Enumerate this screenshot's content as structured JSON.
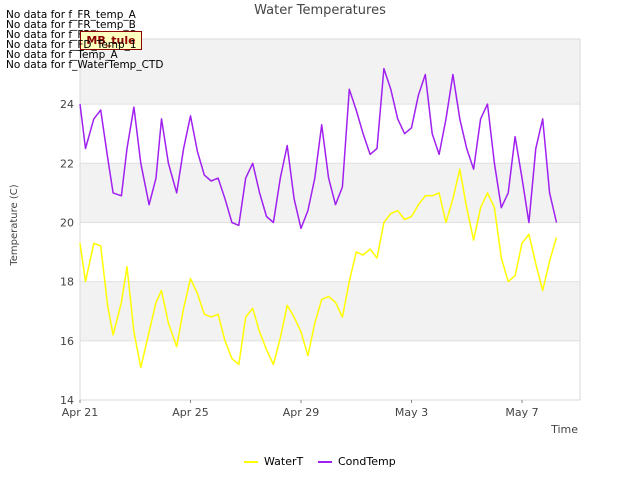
{
  "chart_data": {
    "type": "line",
    "title": "Water Temperatures",
    "xlabel": "Time",
    "ylabel": "Temperature (C)",
    "ylim": [
      14,
      26.2
    ],
    "yticks": [
      14,
      16,
      18,
      20,
      22,
      24
    ],
    "x_start": "2024-04-21",
    "xticks": [
      "Apr 21",
      "Apr 25",
      "Apr 29",
      "May 3",
      "May 7"
    ],
    "xtick_days": [
      0,
      4,
      8,
      12,
      16
    ],
    "xlim_days": [
      0,
      18.1
    ],
    "grid": "horizontal alternating bands",
    "legend_position": "bottom-center",
    "no_data_messages": [
      "No data for f_FR_temp_A",
      "No data for f_FR_temp_B",
      "No data for f_FR_temp_C",
      "No data for f_FD_Temp_1",
      "No data for f_Temp_A",
      "No data for f_WaterTemp_CTD"
    ],
    "badge_text": "MB_tule",
    "series": [
      {
        "name": "WaterT",
        "color": "#ffff00",
        "x_days": [
          0,
          0.2,
          0.5,
          0.75,
          1.0,
          1.2,
          1.5,
          1.7,
          1.95,
          2.2,
          2.5,
          2.75,
          2.95,
          3.2,
          3.5,
          3.75,
          4.0,
          4.25,
          4.5,
          4.75,
          5.0,
          5.25,
          5.5,
          5.75,
          6.0,
          6.25,
          6.5,
          6.75,
          7.0,
          7.25,
          7.5,
          7.75,
          8.0,
          8.25,
          8.5,
          8.75,
          9.0,
          9.25,
          9.5,
          9.75,
          10.0,
          10.25,
          10.5,
          10.75,
          11.0,
          11.25,
          11.5,
          11.75,
          12.0,
          12.25,
          12.5,
          12.75,
          13.0,
          13.25,
          13.5,
          13.75,
          14.0,
          14.25,
          14.5,
          14.75,
          15.0,
          15.25,
          15.5,
          15.75,
          16.0,
          16.25,
          16.5,
          16.75,
          17.0,
          17.25
        ],
        "values": [
          19.3,
          18.0,
          19.3,
          19.2,
          17.2,
          16.2,
          17.3,
          18.5,
          16.3,
          15.1,
          16.3,
          17.3,
          17.7,
          16.6,
          15.8,
          17.1,
          18.1,
          17.6,
          16.9,
          16.8,
          16.9,
          16.0,
          15.4,
          15.2,
          16.8,
          17.1,
          16.3,
          15.7,
          15.2,
          16.1,
          17.2,
          16.8,
          16.3,
          15.5,
          16.6,
          17.4,
          17.5,
          17.3,
          16.8,
          18.0,
          19.0,
          18.9,
          19.1,
          18.8,
          20.0,
          20.3,
          20.4,
          20.1,
          20.2,
          20.6,
          20.9,
          20.9,
          21.0,
          20.0,
          20.8,
          21.8,
          20.5,
          19.4,
          20.5,
          21.0,
          20.5,
          18.8,
          18.0,
          18.2,
          19.3,
          19.6,
          18.6,
          17.7,
          18.7,
          19.5
        ]
      },
      {
        "name": "CondTemp",
        "color": "#a020f0",
        "x_days": [
          0,
          0.2,
          0.5,
          0.75,
          1.0,
          1.2,
          1.5,
          1.7,
          1.95,
          2.2,
          2.5,
          2.75,
          2.95,
          3.2,
          3.5,
          3.75,
          4.0,
          4.25,
          4.5,
          4.75,
          5.0,
          5.25,
          5.5,
          5.75,
          6.0,
          6.25,
          6.5,
          6.75,
          7.0,
          7.25,
          7.5,
          7.75,
          8.0,
          8.25,
          8.5,
          8.75,
          9.0,
          9.25,
          9.5,
          9.75,
          10.0,
          10.25,
          10.5,
          10.75,
          11.0,
          11.25,
          11.5,
          11.75,
          12.0,
          12.25,
          12.5,
          12.75,
          13.0,
          13.25,
          13.5,
          13.75,
          14.0,
          14.25,
          14.5,
          14.75,
          15.0,
          15.25,
          15.5,
          15.75,
          16.0,
          16.25,
          16.5,
          16.75,
          17.0,
          17.25
        ],
        "values": [
          24.0,
          22.5,
          23.5,
          23.8,
          22.2,
          21.0,
          20.9,
          22.5,
          23.9,
          22.0,
          20.6,
          21.5,
          23.5,
          22.0,
          21.0,
          22.5,
          23.6,
          22.4,
          21.6,
          21.4,
          21.5,
          20.8,
          20.0,
          19.9,
          21.5,
          22.0,
          21.0,
          20.2,
          20.0,
          21.5,
          22.6,
          20.8,
          19.8,
          20.4,
          21.5,
          23.3,
          21.5,
          20.6,
          21.2,
          24.5,
          23.8,
          23.0,
          22.3,
          22.5,
          25.2,
          24.5,
          23.5,
          23.0,
          23.2,
          24.3,
          25.0,
          23.0,
          22.3,
          23.5,
          25.0,
          23.5,
          22.5,
          21.8,
          23.5,
          24.0,
          22.0,
          20.5,
          21.0,
          22.9,
          21.5,
          20.0,
          22.5,
          23.5,
          21.0,
          20.0
        ]
      }
    ]
  }
}
